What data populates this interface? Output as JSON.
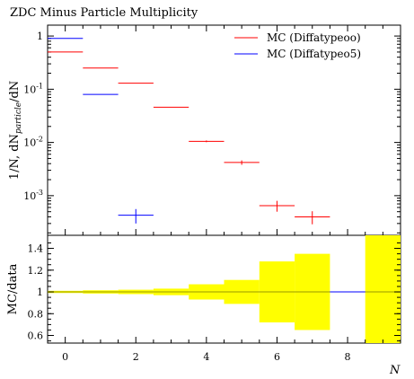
{
  "chart_data": [
    {
      "type": "line",
      "title": "ZDC Minus Particle Multiplicity",
      "ylabel": "1/N, dN_particle/dN",
      "y_scale": "log",
      "y_ticks": [
        "1",
        "10^-1",
        "10^-2",
        "10^-3"
      ],
      "xlim": [
        -0.5,
        9.5
      ],
      "ylim": [
        0.00018,
        1.6
      ],
      "legend": "top-right",
      "series": [
        {
          "name": "MC (Diffatypeoo)",
          "color": "#ff0000",
          "points": [
            {
              "x": 0,
              "y": 0.5,
              "err": 0
            },
            {
              "x": 1,
              "y": 0.25,
              "err": 0
            },
            {
              "x": 2,
              "y": 0.13,
              "err": 0
            },
            {
              "x": 3,
              "y": 0.046,
              "err": 0
            },
            {
              "x": 4,
              "y": 0.0105,
              "err": 0.0004
            },
            {
              "x": 5,
              "y": 0.0042,
              "err": 0.0004
            },
            {
              "x": 6,
              "y": 0.00065,
              "err": 0.00015
            },
            {
              "x": 7,
              "y": 0.0004,
              "err": 0.00011
            }
          ]
        },
        {
          "name": "MC (Diffatypeo5)",
          "color": "#0000ff",
          "points": [
            {
              "x": 0,
              "y": 0.9,
              "err": 0
            },
            {
              "x": 1,
              "y": 0.08,
              "err": 0
            },
            {
              "x": 2,
              "y": 0.00043,
              "err": 0.00013
            }
          ]
        }
      ]
    },
    {
      "type": "bar",
      "title": "",
      "xlabel": "N",
      "ylabel": "MC/data",
      "xlim": [
        -0.5,
        9.5
      ],
      "ylim": [
        0.53,
        1.52
      ],
      "x_ticks": [
        "0",
        "2",
        "4",
        "6",
        "8"
      ],
      "y_ticks": [
        "0.6",
        "0.8",
        "1",
        "1.2",
        "1.4"
      ],
      "band_color": "#ffff00",
      "band": [
        {
          "x": 0,
          "lo": 0.99,
          "hi": 1.01
        },
        {
          "x": 1,
          "lo": 0.985,
          "hi": 1.015
        },
        {
          "x": 2,
          "lo": 0.98,
          "hi": 1.02
        },
        {
          "x": 3,
          "lo": 0.97,
          "hi": 1.03
        },
        {
          "x": 4,
          "lo": 0.93,
          "hi": 1.07
        },
        {
          "x": 5,
          "lo": 0.89,
          "hi": 1.11
        },
        {
          "x": 6,
          "lo": 0.72,
          "hi": 1.28
        },
        {
          "x": 7,
          "lo": 0.65,
          "hi": 1.35
        },
        {
          "x": 9,
          "lo": 0.53,
          "hi": 1.52
        }
      ],
      "reference_line": 1,
      "reference_color": "#999900",
      "ratio_segments": [
        {
          "x": 8,
          "y": 1,
          "color": "#0000ff"
        }
      ]
    }
  ]
}
